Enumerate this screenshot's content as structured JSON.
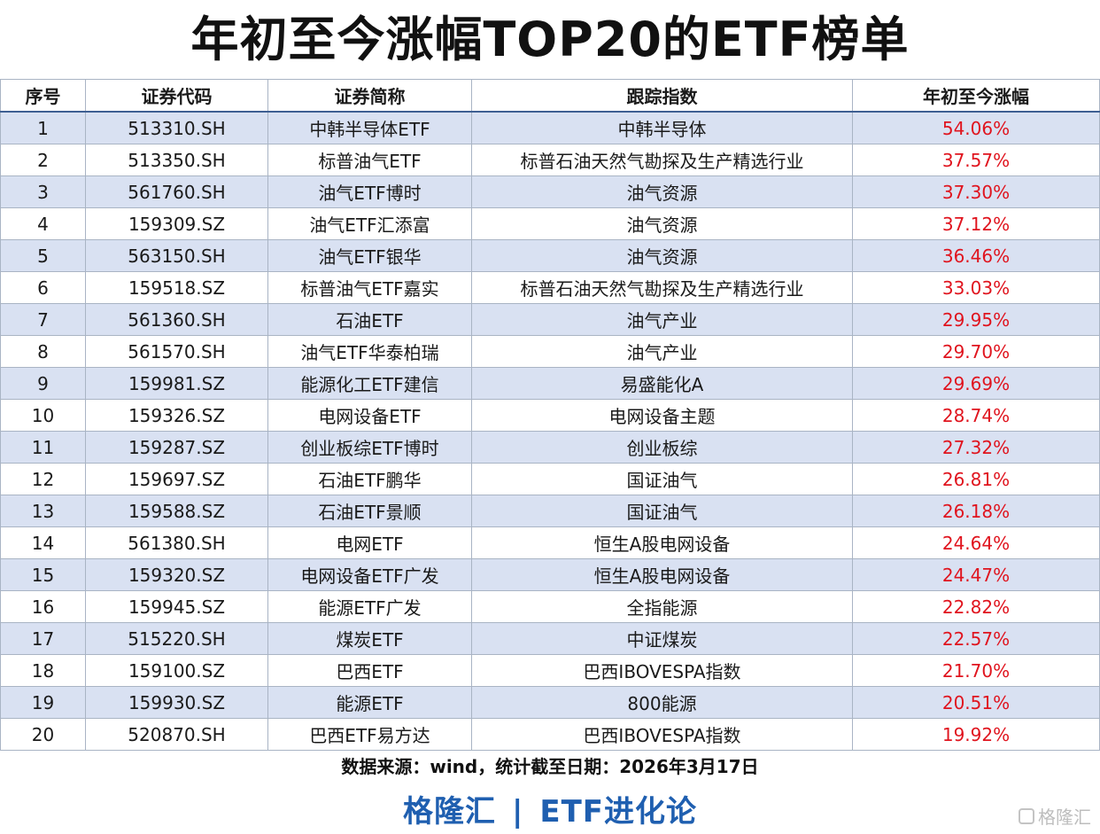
{
  "title": "年初至今涨幅TOP20的ETF榜单",
  "columns": [
    "序号",
    "证券代码",
    "证券简称",
    "跟踪指数",
    "年初至今涨幅"
  ],
  "rows": [
    {
      "no": "1",
      "code": "513310.SH",
      "name": "中韩半导体ETF",
      "index": "中韩半导体",
      "gain": "54.06%"
    },
    {
      "no": "2",
      "code": "513350.SH",
      "name": "标普油气ETF",
      "index": "标普石油天然气勘探及生产精选行业",
      "gain": "37.57%"
    },
    {
      "no": "3",
      "code": "561760.SH",
      "name": "油气ETF博时",
      "index": "油气资源",
      "gain": "37.30%"
    },
    {
      "no": "4",
      "code": "159309.SZ",
      "name": "油气ETF汇添富",
      "index": "油气资源",
      "gain": "37.12%"
    },
    {
      "no": "5",
      "code": "563150.SH",
      "name": "油气ETF银华",
      "index": "油气资源",
      "gain": "36.46%"
    },
    {
      "no": "6",
      "code": "159518.SZ",
      "name": "标普油气ETF嘉实",
      "index": "标普石油天然气勘探及生产精选行业",
      "gain": "33.03%"
    },
    {
      "no": "7",
      "code": "561360.SH",
      "name": "石油ETF",
      "index": "油气产业",
      "gain": "29.95%"
    },
    {
      "no": "8",
      "code": "561570.SH",
      "name": "油气ETF华泰柏瑞",
      "index": "油气产业",
      "gain": "29.70%"
    },
    {
      "no": "9",
      "code": "159981.SZ",
      "name": "能源化工ETF建信",
      "index": "易盛能化A",
      "gain": "29.69%"
    },
    {
      "no": "10",
      "code": "159326.SZ",
      "name": "电网设备ETF",
      "index": "电网设备主题",
      "gain": "28.74%"
    },
    {
      "no": "11",
      "code": "159287.SZ",
      "name": "创业板综ETF博时",
      "index": "创业板综",
      "gain": "27.32%"
    },
    {
      "no": "12",
      "code": "159697.SZ",
      "name": "石油ETF鹏华",
      "index": "国证油气",
      "gain": "26.81%"
    },
    {
      "no": "13",
      "code": "159588.SZ",
      "name": "石油ETF景顺",
      "index": "国证油气",
      "gain": "26.18%"
    },
    {
      "no": "14",
      "code": "561380.SH",
      "name": "电网ETF",
      "index": "恒生A股电网设备",
      "gain": "24.64%"
    },
    {
      "no": "15",
      "code": "159320.SZ",
      "name": "电网设备ETF广发",
      "index": "恒生A股电网设备",
      "gain": "24.47%"
    },
    {
      "no": "16",
      "code": "159945.SZ",
      "name": "能源ETF广发",
      "index": "全指能源",
      "gain": "22.82%"
    },
    {
      "no": "17",
      "code": "515220.SH",
      "name": "煤炭ETF",
      "index": "中证煤炭",
      "gain": "22.57%"
    },
    {
      "no": "18",
      "code": "159100.SZ",
      "name": "巴西ETF",
      "index": "巴西IBOVESPA指数",
      "gain": "21.70%"
    },
    {
      "no": "19",
      "code": "159930.SZ",
      "name": "能源ETF",
      "index": "800能源",
      "gain": "20.51%"
    },
    {
      "no": "20",
      "code": "520870.SH",
      "name": "巴西ETF易方达",
      "index": "巴西IBOVESPA指数",
      "gain": "19.92%"
    }
  ],
  "source": "数据来源：wind，统计截至日期：2026年3月17日",
  "brand": {
    "left": "格隆汇",
    "sep": "|",
    "right": "ETF进化论"
  },
  "watermark": "格隆汇",
  "colors": {
    "row_alt": "#d9e1f2",
    "gain": "#e0141e",
    "brand": "#1f5fb0"
  }
}
